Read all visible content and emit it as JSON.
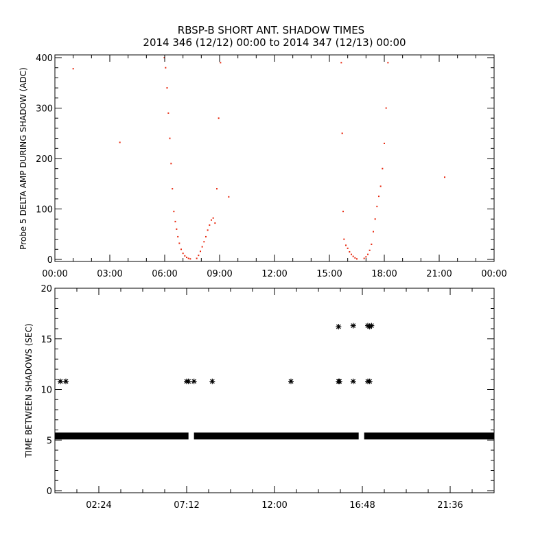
{
  "figure": {
    "title_line1": "RBSP-B SHORT ANT. SHADOW TIMES",
    "title_line2": "2014 346 (12/12) 00:00 to 2014 347 (12/13) 00:00"
  },
  "colors": {
    "points": "#e8260c",
    "stars": "#000000",
    "axes": "#000000"
  },
  "chart_data": [
    {
      "type": "scatter",
      "ylabel": "Probe 5 DELTA AMP DURING SHADOW (ADC)",
      "xlim": [
        "00:00",
        "24:00"
      ],
      "ylim": [
        0,
        400
      ],
      "xticks": [
        "00:00",
        "03:00",
        "06:00",
        "09:00",
        "12:00",
        "15:00",
        "18:00",
        "21:00",
        "00:00"
      ],
      "yticks": [
        "0",
        "100",
        "200",
        "300",
        "400"
      ],
      "marker_color": "#e8260c",
      "series": [
        {
          "x": [
            1.0,
            3.55,
            9.5,
            21.3
          ],
          "y": [
            378,
            232,
            124,
            163
          ]
        },
        {
          "x": [
            5.98,
            6.05,
            6.13,
            6.2,
            6.28,
            6.35,
            6.42,
            6.5,
            6.58,
            6.65,
            6.72,
            6.8,
            6.9,
            7.0,
            7.1,
            7.2,
            7.3,
            7.4
          ],
          "y": [
            400,
            380,
            340,
            290,
            240,
            190,
            140,
            95,
            75,
            60,
            45,
            32,
            20,
            12,
            7,
            4,
            2,
            1
          ]
        },
        {
          "x": [
            7.75,
            7.85,
            7.95,
            8.05,
            8.15,
            8.25,
            8.35,
            8.45,
            8.55,
            8.65,
            8.75,
            8.85,
            8.95,
            9.05
          ],
          "y": [
            2,
            8,
            16,
            25,
            35,
            45,
            58,
            68,
            78,
            82,
            72,
            140,
            280,
            390
          ]
        },
        {
          "x": [
            15.65,
            15.7,
            15.75,
            15.8,
            15.9,
            16.0,
            16.1,
            16.2,
            16.3,
            16.4,
            16.5
          ],
          "y": [
            390,
            250,
            95,
            40,
            28,
            22,
            15,
            10,
            6,
            3,
            1
          ]
        },
        {
          "x": [
            16.9,
            17.0,
            17.1,
            17.2,
            17.3,
            17.4,
            17.5,
            17.6,
            17.7,
            17.8,
            17.9,
            18.0,
            18.1,
            18.2
          ],
          "y": [
            2,
            5,
            10,
            18,
            30,
            55,
            80,
            105,
            125,
            145,
            180,
            230,
            300,
            390
          ]
        }
      ]
    },
    {
      "type": "scatter",
      "ylabel": "TIME BETWEEN SHADOWS (SEC)",
      "xlim": [
        0,
        24
      ],
      "ylim": [
        0,
        20
      ],
      "xticks": [
        "02:24",
        "07:12",
        "12:00",
        "16:48",
        "21:36"
      ],
      "xtick_values": [
        2.4,
        7.2,
        12.0,
        16.8,
        21.6
      ],
      "yticks": [
        "0",
        "5",
        "10",
        "15",
        "20"
      ],
      "marker": "asterisk",
      "marker_color": "#000000",
      "baseline": {
        "y": 5.4,
        "x_ranges": [
          [
            0,
            7.3
          ],
          [
            7.6,
            16.6
          ],
          [
            16.9,
            24
          ]
        ]
      },
      "points": {
        "x": [
          0.3,
          0.6,
          7.2,
          7.3,
          7.6,
          8.6,
          12.9,
          15.5,
          15.5,
          15.55,
          16.3,
          16.3,
          17.1,
          17.2,
          17.3,
          17.1,
          17.2
        ],
        "y": [
          10.8,
          10.8,
          10.8,
          10.8,
          10.8,
          10.8,
          10.8,
          10.8,
          16.2,
          10.8,
          16.3,
          10.8,
          16.3,
          16.2,
          16.3,
          10.8,
          10.8
        ]
      }
    }
  ]
}
